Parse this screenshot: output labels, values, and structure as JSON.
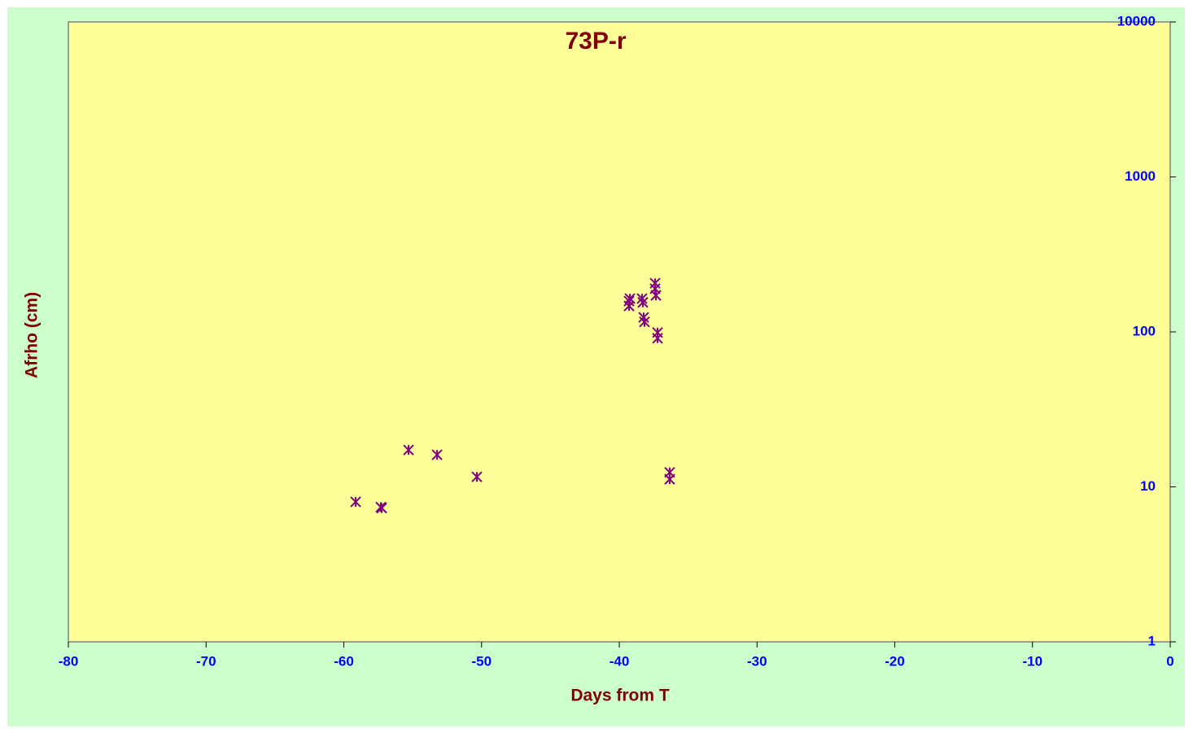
{
  "chart_data": {
    "type": "scatter",
    "title": "73P-r",
    "xlabel": "Days from T",
    "ylabel": "Afrho (cm)",
    "x": [
      -59.14,
      -57.31,
      -57.25,
      -55.3,
      -53.23,
      -50.34,
      -39.29,
      -39.29,
      -39.23,
      -38.35,
      -38.29,
      -38.23,
      -38.17,
      -37.4,
      -37.4,
      -37.34,
      -37.22,
      -37.22,
      -36.34,
      -36.34
    ],
    "values": [
      8.0,
      7.4,
      7.3,
      17.3,
      16.1,
      11.6,
      147,
      158,
      164,
      164,
      155,
      124,
      116,
      206,
      190,
      172,
      99,
      91,
      12.4,
      11.2
    ],
    "color": "#800080",
    "ylog": true,
    "yaxis_side": "right",
    "xlim": [
      -80,
      0
    ],
    "xticks": [
      -80,
      -70,
      -60,
      -50,
      -40,
      -30,
      -20,
      -10,
      0
    ],
    "ylim": [
      1,
      10000
    ],
    "yticks": [
      1,
      10,
      100,
      1000,
      10000
    ]
  }
}
